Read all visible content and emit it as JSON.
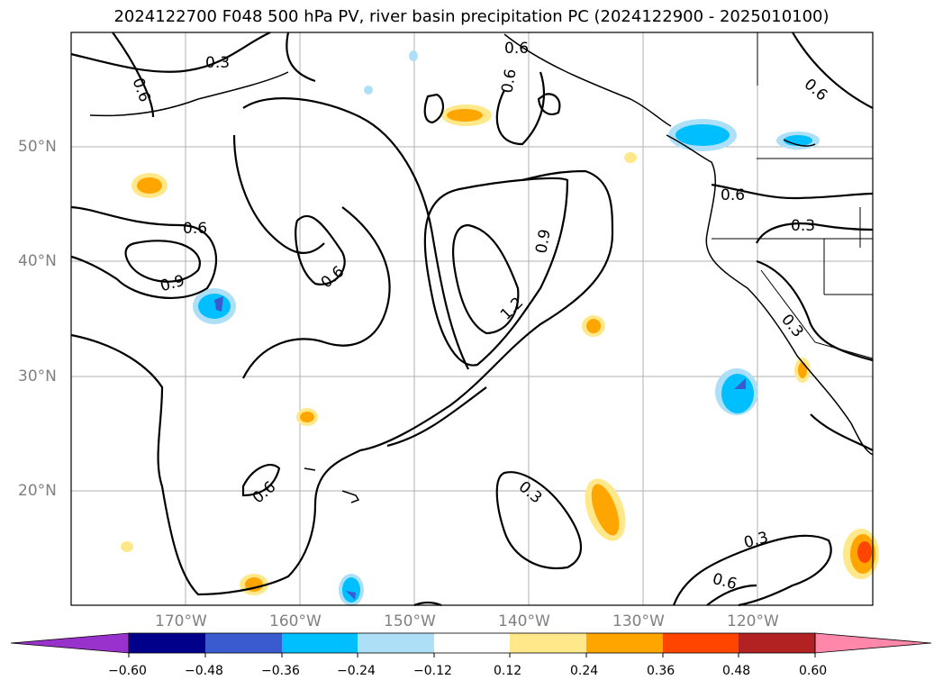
{
  "title": "2024122700 F048 500 hPa PV, river basin precipitation PC (2024122900 - 2025010100)",
  "map": {
    "lat_labels": [
      "50°N",
      "40°N",
      "30°N",
      "20°N"
    ],
    "lon_labels": [
      "170°W",
      "160°W",
      "150°W",
      "140°W",
      "130°W",
      "120°W"
    ],
    "contour_labels": [
      "0.3",
      "0.6",
      "0.6",
      "0.6",
      "0.6",
      "0.9",
      "1.2",
      "0.9",
      "0.6",
      "0.6",
      "0.3",
      "0.6",
      "0.3",
      "0.3",
      "0.6",
      "0.3",
      "0.6"
    ]
  },
  "colorbar": {
    "ticks": [
      "−0.60",
      "−0.48",
      "−0.36",
      "−0.24",
      "−0.12",
      "0.12",
      "0.24",
      "0.36",
      "0.48",
      "0.60"
    ],
    "colors": [
      "#9932CC",
      "#00008B",
      "#3A5BCF",
      "#00BFFF",
      "#ADE0F7",
      "#FFFFFF",
      "#FFE88A",
      "#FFA500",
      "#FF4500",
      "#B22222",
      "#FF88AA"
    ]
  }
}
